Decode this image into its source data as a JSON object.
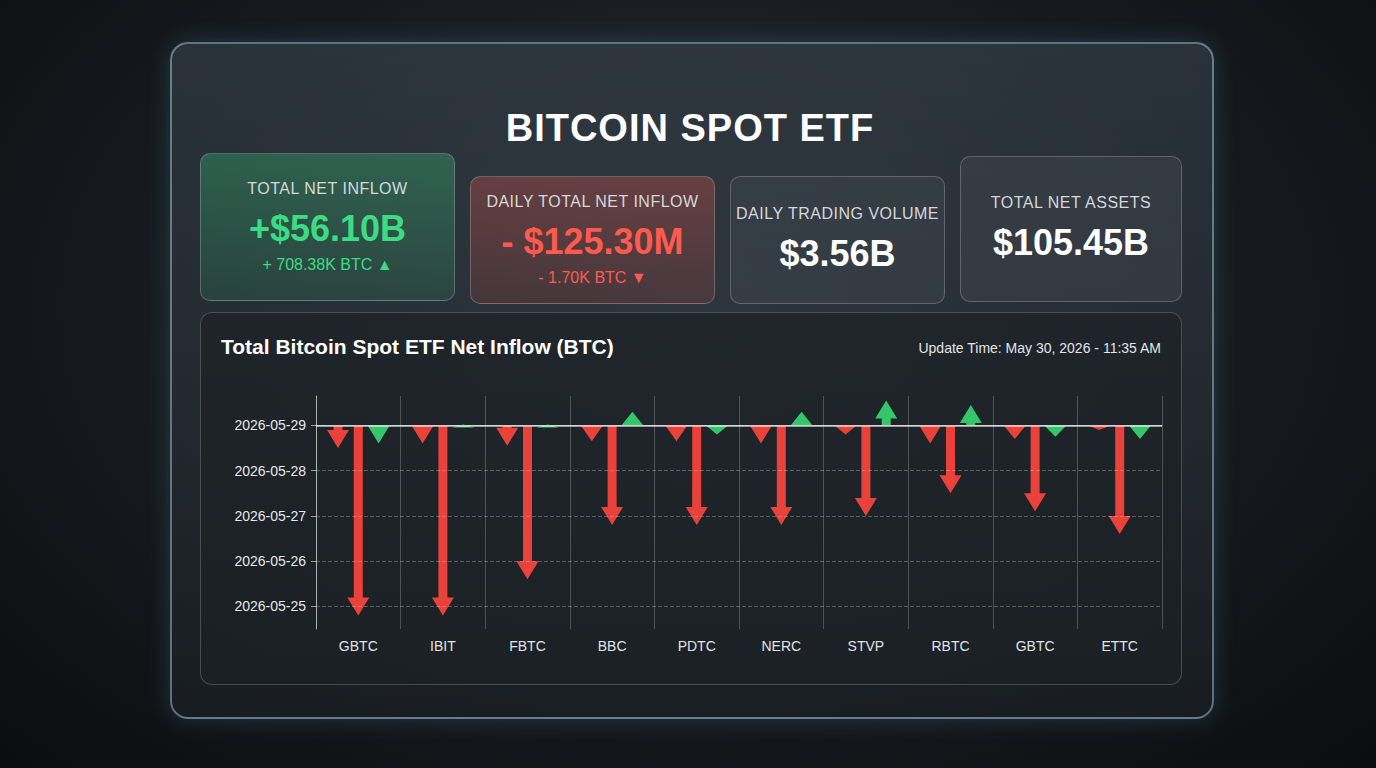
{
  "title": "BITCOIN SPOT ETF",
  "cards": [
    {
      "label": "TOTAL NET INFLOW",
      "value": "+$56.10B",
      "sub": "+ 708.38K BTC ▲",
      "color": "#3ddc84"
    },
    {
      "label": "DAILY TOTAL NET INFLOW",
      "value": "- $125.30M",
      "sub": "- 1.70K BTC ▼",
      "color": "#ff5a4e"
    },
    {
      "label": "DAILY TRADING VOLUME",
      "value": "$3.56B",
      "color": "#ffffff"
    },
    {
      "label": "TOTAL NET ASSETS",
      "value": "$105.45B",
      "color": "#ffffff"
    }
  ],
  "chart_data": {
    "type": "bar",
    "marker": "arrow",
    "title": "Total Bitcoin Spot ETF Net Inflow (BTC)",
    "subtitle": "Update Time: May 30, 2026 - 11:35 AM",
    "categories": [
      "GBTC",
      "IBIT",
      "FBTC",
      "BBC",
      "PDTC",
      "NERC",
      "STVP",
      "RBTC",
      "GBTC",
      "ETTC"
    ],
    "series": [
      {
        "color": "#e8423a",
        "values": [
          -0.5,
          -0.4,
          -0.45,
          -0.35,
          -0.35,
          -0.4,
          -0.2,
          -0.4,
          -0.3,
          -0.1
        ]
      },
      {
        "color": "#e8423a",
        "values": [
          -4.2,
          -4.2,
          -3.4,
          -2.2,
          -2.2,
          -2.2,
          -2.0,
          -1.5,
          -1.9,
          -2.4
        ]
      },
      {
        "color": "#35c56a",
        "values": [
          -0.4,
          0.02,
          0.02,
          0.3,
          -0.2,
          0.3,
          0.55,
          0.45,
          -0.25,
          -0.3
        ]
      }
    ],
    "ylim": [
      -4.5,
      0.65
    ],
    "yticks": [
      {
        "value": -4,
        "label": "2026-05-25"
      },
      {
        "value": -3,
        "label": "2026-05-26"
      },
      {
        "value": -2,
        "label": "2026-05-27"
      },
      {
        "value": -1,
        "label": "2026-05-28"
      },
      {
        "value": 0,
        "label": "2026-05-29"
      }
    ],
    "grid": true
  }
}
